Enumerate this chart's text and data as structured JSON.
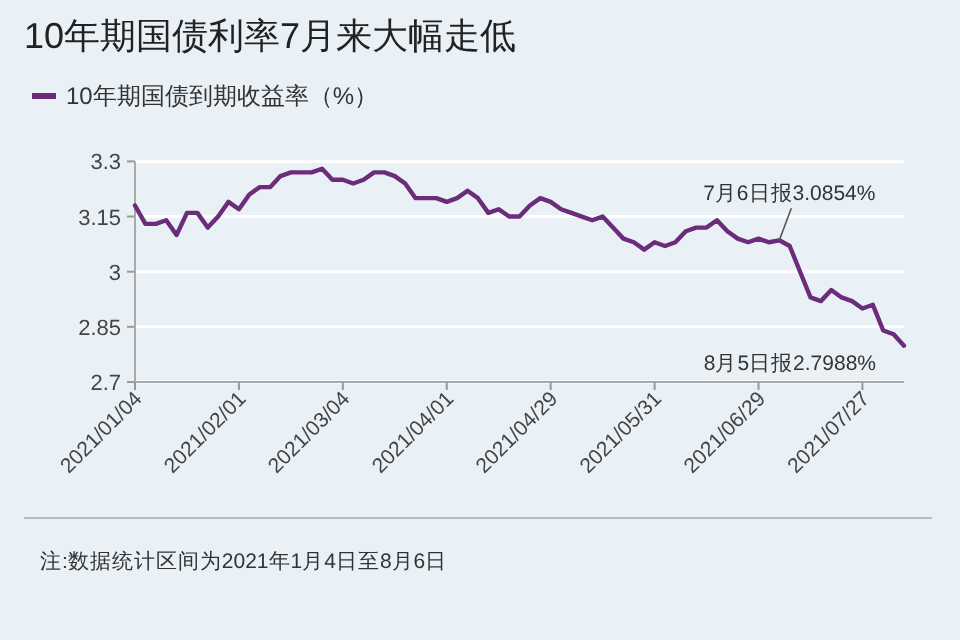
{
  "chart_data": {
    "type": "line",
    "title": "10年期国债利率7月来大幅走低",
    "categories": [
      "2021/01/04",
      null,
      null,
      null,
      null,
      null,
      null,
      null,
      null,
      null,
      "2021/02/01",
      null,
      null,
      null,
      null,
      null,
      null,
      null,
      null,
      null,
      "2021/03/04",
      null,
      null,
      null,
      null,
      null,
      null,
      null,
      null,
      null,
      "2021/04/01",
      null,
      null,
      null,
      null,
      null,
      null,
      null,
      null,
      null,
      "2021/04/29",
      null,
      null,
      null,
      null,
      null,
      null,
      null,
      null,
      null,
      "2021/05/31",
      null,
      null,
      null,
      null,
      null,
      null,
      null,
      null,
      null,
      "2021/06/29",
      null,
      null,
      null,
      null,
      null,
      null,
      null,
      null,
      null,
      "2021/07/27",
      null,
      null,
      null,
      null
    ],
    "series": [
      {
        "name": "10年期国债到期收益率（%）",
        "color": "#6b2c7a",
        "values": [
          3.18,
          3.13,
          3.13,
          3.14,
          3.1,
          3.16,
          3.16,
          3.12,
          3.15,
          3.19,
          3.17,
          3.21,
          3.23,
          3.23,
          3.26,
          3.27,
          3.27,
          3.27,
          3.28,
          3.25,
          3.25,
          3.24,
          3.25,
          3.27,
          3.27,
          3.26,
          3.24,
          3.2,
          3.2,
          3.2,
          3.19,
          3.2,
          3.22,
          3.2,
          3.16,
          3.17,
          3.15,
          3.15,
          3.18,
          3.2,
          3.19,
          3.17,
          3.16,
          3.15,
          3.14,
          3.15,
          3.12,
          3.09,
          3.08,
          3.06,
          3.08,
          3.07,
          3.08,
          3.11,
          3.12,
          3.12,
          3.14,
          3.11,
          3.09,
          3.08,
          3.09,
          3.08,
          3.0854,
          3.07,
          3.0,
          2.93,
          2.92,
          2.95,
          2.93,
          2.92,
          2.9,
          2.91,
          2.84,
          2.83,
          2.7988
        ]
      }
    ],
    "ylim": [
      2.7,
      3.3
    ],
    "yticks": [
      2.7,
      2.85,
      3,
      3.15,
      3.3
    ],
    "grid": "y",
    "legend": "top left",
    "annotations": [
      {
        "text": "7月6日报3.0854%",
        "y": 3.0854
      },
      "8月5日报2.7988%",
      "注:数据统计区间为2021年1月4日至8月6日"
    ]
  }
}
